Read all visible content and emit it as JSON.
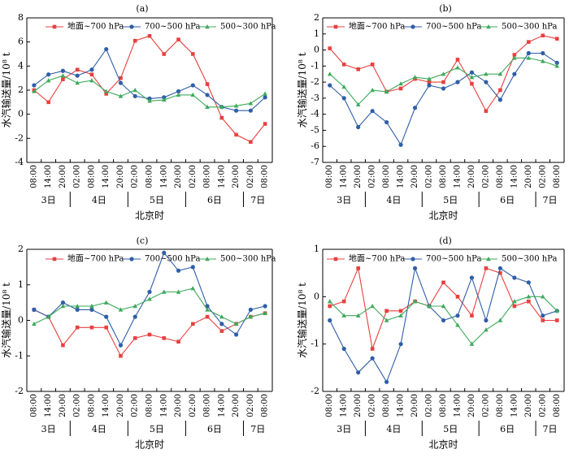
{
  "figure": {
    "x_tick_labels": [
      "08:00",
      "14:00",
      "20:00",
      "02:00",
      "08:00",
      "14:00",
      "20:00",
      "02:00",
      "08:00",
      "14:00",
      "20:00",
      "02:00",
      "08:00",
      "14:00",
      "20:00",
      "02:00",
      "08:00"
    ],
    "day_labels": [
      {
        "text": "3日",
        "start": 0,
        "end": 2
      },
      {
        "text": "4日",
        "start": 3,
        "end": 6
      },
      {
        "text": "5日",
        "start": 7,
        "end": 10
      },
      {
        "text": "6日",
        "start": 11,
        "end": 14
      },
      {
        "text": "7日",
        "start": 15,
        "end": 16
      }
    ],
    "xlabel": "北京时",
    "ylabel": "水汽输送量/10⁸ t",
    "legend": [
      "地面~700 hPa",
      "700~500 hPa",
      "500~300 hPa"
    ],
    "series_colors": [
      "#e8403f",
      "#2f5ea8",
      "#3daa5b"
    ]
  },
  "chart_data": [
    {
      "type": "line",
      "panel": "(a)",
      "xlabel": "北京时",
      "ylabel": "水汽输送量/10⁸ t",
      "ylim": [
        -4,
        8
      ],
      "yticks": [
        -4,
        -2,
        0,
        2,
        4,
        6,
        8
      ],
      "legend_position": "top",
      "series": [
        {
          "name": "地面~700 hPa",
          "values": [
            2.0,
            1.0,
            2.9,
            3.7,
            3.3,
            1.7,
            3.0,
            6.1,
            6.5,
            5.0,
            6.2,
            5.0,
            2.5,
            -0.3,
            -1.7,
            -2.3,
            -0.8
          ]
        },
        {
          "name": "700~500 hPa",
          "values": [
            2.4,
            3.3,
            3.6,
            3.2,
            3.7,
            5.4,
            2.6,
            1.5,
            1.3,
            1.4,
            1.9,
            2.4,
            1.6,
            0.6,
            0.3,
            0.3,
            1.4
          ]
        },
        {
          "name": "500~300 hPa",
          "values": [
            1.9,
            2.8,
            3.2,
            2.6,
            2.8,
            1.9,
            1.5,
            2.0,
            1.1,
            1.2,
            1.6,
            1.6,
            0.6,
            0.6,
            0.7,
            0.9,
            1.7
          ]
        }
      ]
    },
    {
      "type": "line",
      "panel": "(b)",
      "xlabel": "北京时",
      "ylabel": "水汽输送量/10⁸ t",
      "ylim": [
        -7,
        2
      ],
      "yticks": [
        -7,
        -6,
        -5,
        -4,
        -3,
        -2,
        -1,
        0,
        1,
        2
      ],
      "legend_position": "top",
      "series": [
        {
          "name": "地面~700 hPa",
          "values": [
            0.1,
            -0.9,
            -1.2,
            -0.9,
            -2.6,
            -2.4,
            -1.8,
            -2.0,
            -2.0,
            -0.6,
            -2.1,
            -3.8,
            -2.5,
            -0.3,
            0.5,
            0.9,
            0.7
          ]
        },
        {
          "name": "700~500 hPa",
          "values": [
            -2.2,
            -3.0,
            -4.8,
            -3.8,
            -4.5,
            -5.9,
            -3.6,
            -2.2,
            -2.4,
            -2.0,
            -1.4,
            -2.0,
            -3.1,
            -1.5,
            -0.2,
            -0.2,
            -0.8
          ]
        },
        {
          "name": "500~300 hPa",
          "values": [
            -1.5,
            -2.3,
            -3.4,
            -2.5,
            -2.6,
            -2.1,
            -1.7,
            -1.8,
            -1.5,
            -1.1,
            -1.7,
            -1.5,
            -1.5,
            -0.5,
            -0.5,
            -0.7,
            -1.0
          ]
        }
      ]
    },
    {
      "type": "line",
      "panel": "(c)",
      "xlabel": "北京时",
      "ylabel": "水汽输送量/10⁸ t",
      "ylim": [
        -2,
        2
      ],
      "yticks": [
        -2,
        -1,
        0,
        1,
        2
      ],
      "legend_position": "top",
      "series": [
        {
          "name": "地面~700 hPa",
          "values": [
            0.3,
            0.1,
            -0.7,
            -0.2,
            -0.2,
            -0.2,
            -1.0,
            -0.5,
            -0.4,
            -0.5,
            -0.6,
            -0.1,
            0.1,
            -0.3,
            -0.1,
            0.1,
            0.2
          ]
        },
        {
          "name": "700~500 hPa",
          "values": [
            0.3,
            0.1,
            0.5,
            0.3,
            0.3,
            0.1,
            -0.7,
            0.1,
            0.8,
            1.9,
            1.4,
            1.5,
            0.4,
            -0.1,
            -0.4,
            0.3,
            0.4
          ]
        },
        {
          "name": "500~300 hPa",
          "values": [
            -0.1,
            0.1,
            0.4,
            0.4,
            0.4,
            0.5,
            0.3,
            0.4,
            0.6,
            0.8,
            0.8,
            0.9,
            0.3,
            0.1,
            -0.1,
            0.1,
            0.2
          ]
        }
      ]
    },
    {
      "type": "line",
      "panel": "(d)",
      "xlabel": "北京时",
      "ylabel": "水汽输送量/10⁸ t",
      "ylim": [
        -2,
        1
      ],
      "yticks": [
        -2,
        -1,
        0,
        1
      ],
      "legend_position": "top",
      "series": [
        {
          "name": "地面~700 hPa",
          "values": [
            -0.2,
            -0.1,
            0.6,
            -1.1,
            -0.3,
            -0.3,
            -0.1,
            -0.2,
            0.3,
            0.0,
            -0.4,
            0.6,
            0.5,
            -0.2,
            -0.1,
            -0.5,
            -0.5
          ]
        },
        {
          "name": "700~500 hPa",
          "values": [
            -0.5,
            -1.1,
            -1.6,
            -1.3,
            -1.8,
            -1.0,
            0.6,
            -0.2,
            -0.5,
            -0.4,
            0.4,
            -0.5,
            0.6,
            0.4,
            0.3,
            -0.4,
            -0.3
          ]
        },
        {
          "name": "500~300 hPa",
          "values": [
            -0.1,
            -0.4,
            -0.4,
            -0.2,
            -0.5,
            -0.4,
            -0.1,
            -0.2,
            -0.2,
            -0.6,
            -1.0,
            -0.7,
            -0.5,
            -0.1,
            0.0,
            -0.0,
            -0.3
          ]
        }
      ]
    }
  ]
}
